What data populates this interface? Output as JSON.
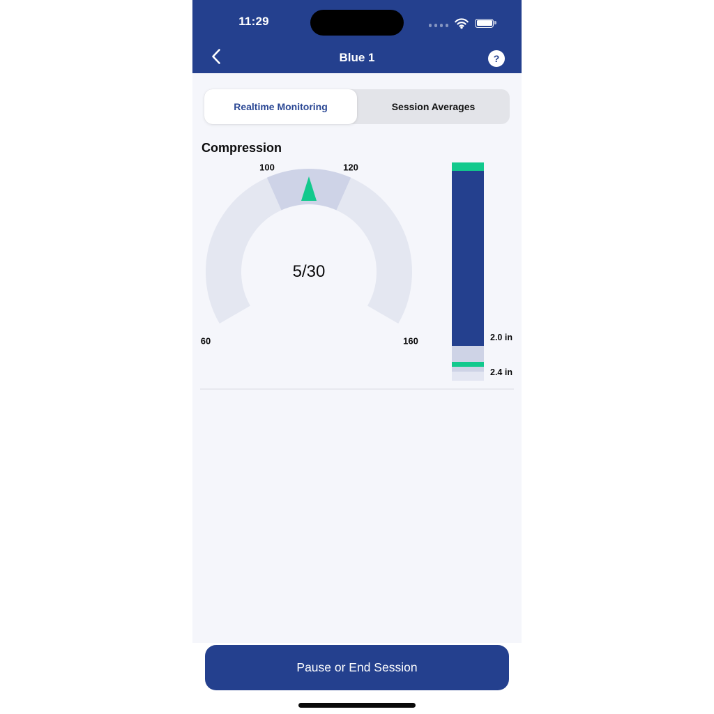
{
  "status_bar": {
    "time": "11:29",
    "icons": [
      "cellular-signal-dots",
      "wifi",
      "battery-full"
    ]
  },
  "header": {
    "title": "Blue 1",
    "back_icon": "chevron-left",
    "help_button": "?"
  },
  "tabs": [
    {
      "label": "Realtime Monitoring",
      "active": true
    },
    {
      "label": "Session Averages",
      "active": false
    }
  ],
  "section": {
    "heading": "Compression"
  },
  "gauge": {
    "center_value": "5/30",
    "labels": [
      "60",
      "100",
      "120",
      "160"
    ]
  },
  "depth_bar": {
    "labels": [
      "2.0 in",
      "2.4 in"
    ]
  },
  "footer": {
    "button_label": "Pause or End Session"
  },
  "colors": {
    "navy": "#24408E",
    "green": "#12C98D",
    "content_bg": "#F5F6FB",
    "arc_track": "#E4E7F1",
    "arc_zone": "#CED3E7",
    "segmented_bg": "#E3E4E9",
    "zone_lavender": "#CED3E6",
    "over_zone": "#E3E6F2",
    "divider": "#E8E9EF",
    "tab_active_text": "#2A4794",
    "text_dark": "#0B0B0C"
  },
  "chart_data": [
    {
      "type": "gauge",
      "title": "Compression rate gauge",
      "min": 60,
      "max": 160,
      "start_angle_deg": 210,
      "end_angle_deg": -30,
      "tick_labels": [
        60,
        100,
        120,
        160
      ],
      "target_zone": {
        "from": 100,
        "to": 120
      },
      "indicator_value": 110,
      "center_label": "5/30"
    },
    {
      "type": "bar",
      "title": "Compression depth indicator",
      "orientation": "vertical",
      "unit": "in",
      "target_zone": {
        "from": 2.0,
        "to": 2.4
      },
      "marker_labels": [
        "2.0 in",
        "2.4 in"
      ],
      "segments_top_to_bottom": [
        "start-cap-green",
        "current-depth-fill-navy",
        "target-zone",
        "target-line-green",
        "target-zone",
        "over-depth-zone"
      ]
    }
  ]
}
